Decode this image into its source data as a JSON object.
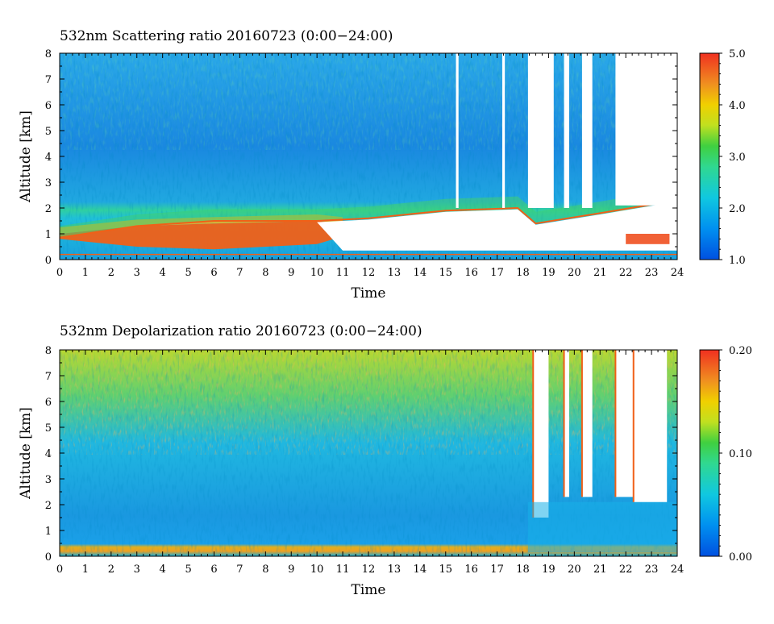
{
  "chart_data": [
    {
      "type": "heatmap",
      "title": "532nm Scattering ratio  20160723 (0:00−24:00)",
      "xlabel": "Time",
      "ylabel": "Altitude [km]",
      "xlim": [
        0,
        24
      ],
      "ylim": [
        0,
        8
      ],
      "x_ticks": [
        "0",
        "1",
        "2",
        "3",
        "4",
        "5",
        "6",
        "7",
        "8",
        "9",
        "10",
        "11",
        "12",
        "13",
        "14",
        "15",
        "16",
        "17",
        "18",
        "19",
        "20",
        "21",
        "22",
        "23",
        "24"
      ],
      "y_ticks": [
        "0",
        "1",
        "2",
        "3",
        "4",
        "5",
        "6",
        "7",
        "8"
      ],
      "colorbar": {
        "min": 1.0,
        "max": 5.0,
        "ticks": [
          "1.0",
          "2.0",
          "3.0",
          "4.0",
          "5.0"
        ]
      },
      "features": {
        "background_value": 1.9,
        "boundary_layer_top_km": [
          [
            0,
            0.85
          ],
          [
            3,
            1.3
          ],
          [
            6,
            1.5
          ],
          [
            10,
            1.5
          ],
          [
            12,
            1.6
          ],
          [
            15,
            1.9
          ],
          [
            17.8,
            2.0
          ],
          [
            18.5,
            1.4
          ],
          [
            21,
            1.8
          ],
          [
            24,
            2.3
          ]
        ],
        "high_value_layer_km": [
          [
            0,
            0.8,
            1.0
          ],
          [
            3,
            0.5,
            1.3
          ],
          [
            6,
            0.4,
            1.4
          ],
          [
            10,
            0.6,
            1.5
          ],
          [
            11,
            0.9,
            1.4
          ]
        ],
        "missing_data_hours": [
          [
            15.4,
            15.5
          ],
          [
            17.2,
            17.3
          ],
          [
            18.2,
            19.2
          ],
          [
            19.6,
            19.8
          ],
          [
            20.3,
            20.7
          ],
          [
            21.6,
            24.0
          ]
        ]
      }
    },
    {
      "type": "heatmap",
      "title": "532nm Depolarization ratio  20160723 (0:00−24:00)",
      "xlabel": "Time",
      "ylabel": "Altitude [km]",
      "xlim": [
        0,
        24
      ],
      "ylim": [
        0,
        8
      ],
      "x_ticks": [
        "0",
        "1",
        "2",
        "3",
        "4",
        "5",
        "6",
        "7",
        "8",
        "9",
        "10",
        "11",
        "12",
        "13",
        "14",
        "15",
        "16",
        "17",
        "18",
        "19",
        "20",
        "21",
        "22",
        "23",
        "24"
      ],
      "y_ticks": [
        "0",
        "1",
        "2",
        "3",
        "4",
        "5",
        "6",
        "7",
        "8"
      ],
      "colorbar": {
        "min": 0.0,
        "max": 0.2,
        "ticks": [
          "0.00",
          "0.10",
          "0.20"
        ]
      },
      "features": {
        "background_value": 0.05,
        "surface_layer_value": 0.15,
        "upper_noise_above_km": 4.0,
        "missing_data_hours": [
          [
            18.4,
            19.0
          ],
          [
            19.6,
            19.8
          ],
          [
            20.3,
            20.7
          ],
          [
            21.6,
            22.3
          ],
          [
            22.3,
            23.6
          ]
        ]
      }
    }
  ]
}
